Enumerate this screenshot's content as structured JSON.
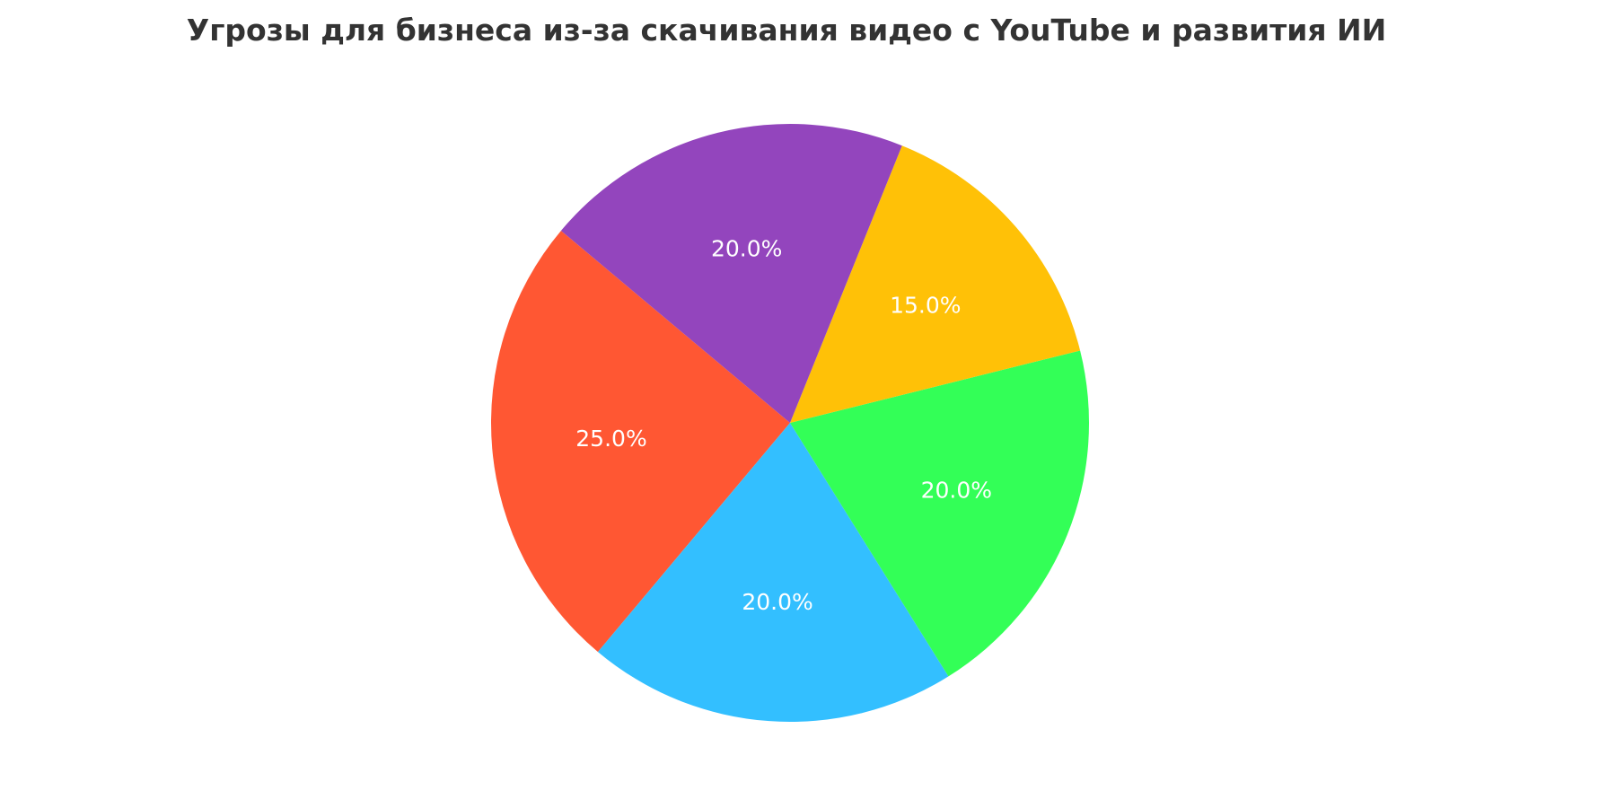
{
  "figure": {
    "background_color": "#ffffff"
  },
  "chart_data": {
    "type": "pie",
    "title": "Угрозы для бизнеса из-за скачивания видео с YouTube и развития ИИ",
    "title_color": "#333333",
    "legend": false,
    "start_angle_deg": 140,
    "direction": "counterclockwise",
    "label_color": "#ffffff",
    "label_radius_fraction": 0.6,
    "slices": [
      {
        "value": 25,
        "percent_label": "25.0%",
        "color": "#FF5733"
      },
      {
        "value": 20,
        "percent_label": "20.0%",
        "color": "#33BFFF"
      },
      {
        "value": 20,
        "percent_label": "20.0%",
        "color": "#33FF57"
      },
      {
        "value": 15,
        "percent_label": "15.0%",
        "color": "#FFC107"
      },
      {
        "value": 20,
        "percent_label": "20.0%",
        "color": "#9345BD"
      }
    ]
  }
}
